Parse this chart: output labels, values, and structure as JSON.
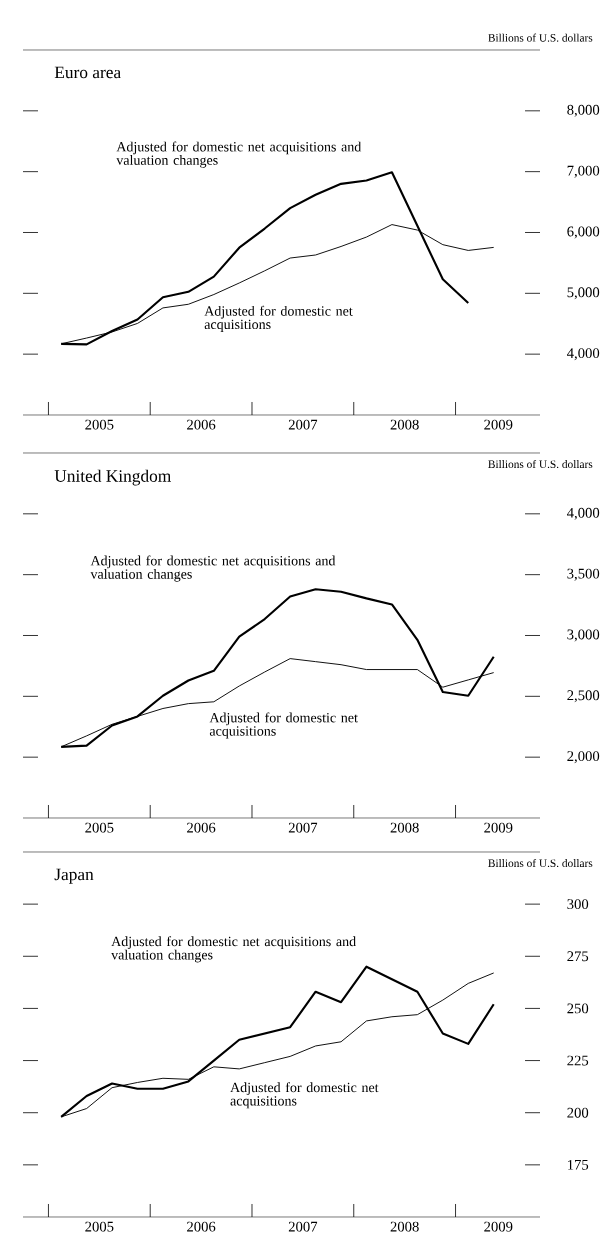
{
  "chart_data": [
    {
      "type": "line",
      "title": "Euro area",
      "ylabel": "Billions of U.S. dollars",
      "x": [
        2005.125,
        2005.375,
        2005.625,
        2005.875,
        2006.125,
        2006.375,
        2006.625,
        2006.875,
        2007.125,
        2007.375,
        2007.625,
        2007.875,
        2008.125,
        2008.375,
        2008.625,
        2008.875,
        2009.125,
        2009.375
      ],
      "series": [
        {
          "name": "Adjusted for domestic net acquisitions and valuation changes",
          "color": "#000000",
          "values": [
            4170,
            4160,
            4380,
            4570,
            4935,
            5025,
            5275,
            5750,
            6065,
            6400,
            6620,
            6800,
            6855,
            6990,
            6110,
            5230,
            4840,
            null
          ]
        },
        {
          "name": "Adjusted for domestic net acquisitions",
          "color": "#000000",
          "values": [
            4170,
            4265,
            4365,
            4505,
            4760,
            4820,
            4980,
            5170,
            5370,
            5580,
            5630,
            5770,
            5925,
            6130,
            6040,
            5800,
            5705,
            5755
          ]
        }
      ],
      "xlim": [
        2004.75,
        2009.83
      ],
      "ylim": [
        3000,
        9000
      ],
      "xticks": [
        {
          "value": 2005,
          "label": null
        },
        {
          "value": 2006,
          "label": null
        },
        {
          "value": 2007,
          "label": null
        },
        {
          "value": 2008,
          "label": null
        },
        {
          "value": 2009,
          "label": null
        },
        {
          "value": 2005.5,
          "label": "2005"
        },
        {
          "value": 2006.5,
          "label": "2006"
        },
        {
          "value": 2007.5,
          "label": "2007"
        },
        {
          "value": 2008.5,
          "label": "2008"
        },
        {
          "value": 2009.42,
          "label": "2009"
        }
      ],
      "yticks": [
        {
          "value": 4000,
          "label": "4,000"
        },
        {
          "value": 5000,
          "label": "5,000"
        },
        {
          "value": 6000,
          "label": "6,000"
        },
        {
          "value": 7000,
          "label": "7,000"
        },
        {
          "value": 8000,
          "label": "8,000"
        }
      ],
      "grid": false
    },
    {
      "type": "line",
      "title": "United Kingdom",
      "ylabel": "Billions of U.S. dollars",
      "x": [
        2005.125,
        2005.375,
        2005.625,
        2005.875,
        2006.125,
        2006.375,
        2006.625,
        2006.875,
        2007.125,
        2007.375,
        2007.625,
        2007.875,
        2008.125,
        2008.375,
        2008.625,
        2008.875,
        2009.125,
        2009.375
      ],
      "series": [
        {
          "name": "Adjusted for domestic net acquisitions and valuation changes",
          "color": "#000000",
          "values": [
            2085,
            2095,
            2260,
            2335,
            2505,
            2630,
            2710,
            2990,
            3135,
            3320,
            3380,
            3360,
            3305,
            3255,
            2965,
            2535,
            2505,
            2825
          ]
        },
        {
          "name": "Adjusted for domestic net acquisitions",
          "color": "#000000",
          "values": [
            2085,
            2175,
            2270,
            2335,
            2400,
            2440,
            2455,
            2585,
            2700,
            2810,
            2785,
            2760,
            2720,
            2720,
            2720,
            2575,
            2635,
            2695
          ]
        }
      ],
      "xlim": [
        2004.75,
        2009.83
      ],
      "ylim": [
        1500,
        4500
      ],
      "xticks": [
        {
          "value": 2005,
          "label": null
        },
        {
          "value": 2006,
          "label": null
        },
        {
          "value": 2007,
          "label": null
        },
        {
          "value": 2008,
          "label": null
        },
        {
          "value": 2009,
          "label": null
        },
        {
          "value": 2005.5,
          "label": "2005"
        },
        {
          "value": 2006.5,
          "label": "2006"
        },
        {
          "value": 2007.5,
          "label": "2007"
        },
        {
          "value": 2008.5,
          "label": "2008"
        },
        {
          "value": 2009.42,
          "label": "2009"
        }
      ],
      "yticks": [
        {
          "value": 2000,
          "label": "2,000"
        },
        {
          "value": 2500,
          "label": "2,500"
        },
        {
          "value": 3000,
          "label": "3,000"
        },
        {
          "value": 3500,
          "label": "3,500"
        },
        {
          "value": 4000,
          "label": "4,000"
        }
      ],
      "grid": false
    },
    {
      "type": "line",
      "title": "Japan",
      "ylabel": "Billions of U.S. dollars",
      "x": [
        2005.125,
        2005.375,
        2005.625,
        2005.875,
        2006.125,
        2006.375,
        2006.625,
        2006.875,
        2007.125,
        2007.375,
        2007.625,
        2007.875,
        2008.125,
        2008.375,
        2008.625,
        2008.875,
        2009.125,
        2009.375
      ],
      "series": [
        {
          "name": "Adjusted for domestic net acquisitions and valuation changes",
          "color": "#000000",
          "values": [
            198,
            208,
            214,
            211.5,
            211.5,
            215,
            225,
            235,
            238,
            241,
            258,
            253,
            270,
            264,
            258,
            238,
            233,
            252
          ]
        },
        {
          "name": "Adjusted for domestic net acquisitions",
          "color": "#000000",
          "values": [
            198,
            202,
            212,
            214.5,
            216.5,
            216,
            222,
            221,
            224,
            227,
            232,
            234,
            244,
            246,
            247,
            254,
            262,
            267
          ]
        }
      ],
      "xlim": [
        2004.75,
        2009.83
      ],
      "ylim": [
        150,
        325
      ],
      "xticks": [
        {
          "value": 2005,
          "label": null
        },
        {
          "value": 2006,
          "label": null
        },
        {
          "value": 2007,
          "label": null
        },
        {
          "value": 2008,
          "label": null
        },
        {
          "value": 2009,
          "label": null
        },
        {
          "value": 2005.5,
          "label": "2005"
        },
        {
          "value": 2006.5,
          "label": "2006"
        },
        {
          "value": 2007.5,
          "label": "2007"
        },
        {
          "value": 2008.5,
          "label": "2008"
        },
        {
          "value": 2009.42,
          "label": "2009"
        }
      ],
      "yticks": [
        175,
        200,
        225,
        250,
        275,
        300
      ],
      "grid": false
    }
  ]
}
